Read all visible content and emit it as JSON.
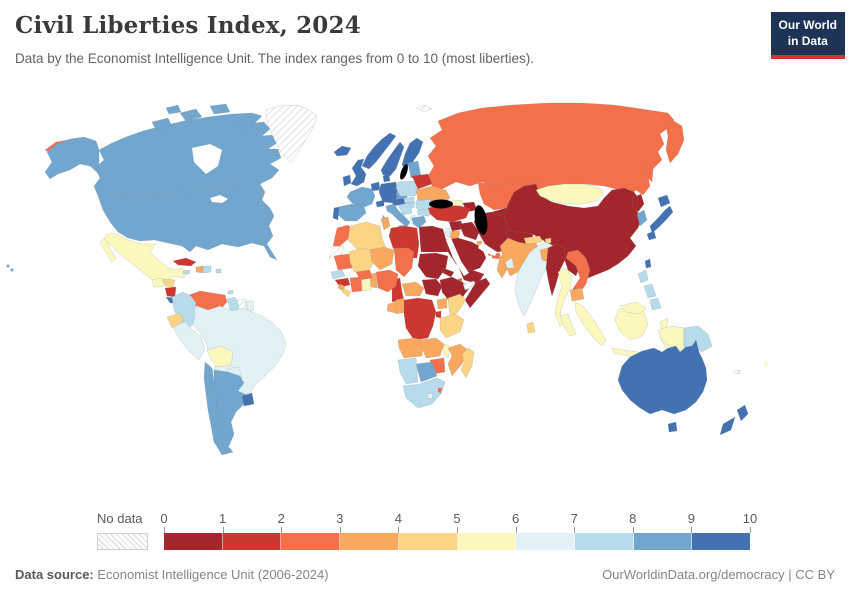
{
  "header": {
    "title": "Civil Liberties Index, 2024",
    "subtitle": "Data by the Economist Intelligence Unit. The index ranges from 0 to 10 (most liberties)."
  },
  "logo": {
    "line1": "Our World",
    "line2": "in Data",
    "bg_color": "#1d3456",
    "accent_color": "#d0342c"
  },
  "legend": {
    "no_data_label": "No data",
    "ticks": [
      "0",
      "1",
      "2",
      "3",
      "4",
      "5",
      "6",
      "7",
      "8",
      "9",
      "10"
    ],
    "bin_colors": [
      "#a2262c",
      "#cd3731",
      "#f3704b",
      "#f9a85f",
      "#fbd485",
      "#fcf8bd",
      "#e1f1f6",
      "#b6dbea",
      "#72a6ce",
      "#4371b2"
    ]
  },
  "footer": {
    "source_label": "Data source:",
    "source_text": " Economist Intelligence Unit (2006-2024)",
    "right_text": "OurWorldinData.org/democracy | CC BY"
  },
  "chart_data": {
    "type": "choropleth-world-map",
    "title": "Civil Liberties Index, 2024",
    "value_range": [
      0,
      10
    ],
    "legend_bins": [
      "0-1",
      "1-2",
      "2-3",
      "3-4",
      "4-5",
      "5-6",
      "6-7",
      "7-8",
      "8-9",
      "9-10"
    ],
    "note": "bin = index into legend bin_colors; null = no data",
    "countries": {
      "canada": {
        "name": "Canada",
        "bin": 8
      },
      "united-states": {
        "name": "United States",
        "bin": 8
      },
      "greenland": {
        "name": "Greenland",
        "bin": null
      },
      "mexico": {
        "name": "Mexico",
        "bin": 5
      },
      "guatemala": {
        "name": "Guatemala",
        "bin": 5
      },
      "honduras": {
        "name": "Honduras",
        "bin": 4
      },
      "nicaragua": {
        "name": "Nicaragua",
        "bin": 1
      },
      "costa-rica": {
        "name": "Costa Rica",
        "bin": 9
      },
      "panama": {
        "name": "Panama",
        "bin": 8
      },
      "cuba": {
        "name": "Cuba",
        "bin": 1
      },
      "haiti": {
        "name": "Haiti",
        "bin": 3
      },
      "dominican-republic": {
        "name": "Dominican Republic",
        "bin": 7
      },
      "jamaica": {
        "name": "Jamaica",
        "bin": 7
      },
      "puerto-rico": {
        "name": "Puerto Rico",
        "bin": 7
      },
      "trinidad": {
        "name": "Trinidad and Tobago",
        "bin": 7
      },
      "venezuela": {
        "name": "Venezuela",
        "bin": 2
      },
      "colombia": {
        "name": "Colombia",
        "bin": 7
      },
      "guyana": {
        "name": "Guyana",
        "bin": 7
      },
      "suriname": {
        "name": "Suriname",
        "bin": null
      },
      "french-guiana": {
        "name": "French Guiana",
        "bin": 6
      },
      "ecuador": {
        "name": "Ecuador",
        "bin": 4
      },
      "peru": {
        "name": "Peru",
        "bin": 6
      },
      "brazil": {
        "name": "Brazil",
        "bin": 6
      },
      "bolivia": {
        "name": "Bolivia",
        "bin": 5
      },
      "paraguay": {
        "name": "Paraguay",
        "bin": 6
      },
      "chile": {
        "name": "Chile",
        "bin": 8
      },
      "argentina": {
        "name": "Argentina",
        "bin": 8
      },
      "uruguay": {
        "name": "Uruguay",
        "bin": 9
      },
      "iceland": {
        "name": "Iceland",
        "bin": 9
      },
      "norway": {
        "name": "Norway",
        "bin": 9
      },
      "sweden": {
        "name": "Sweden",
        "bin": 9
      },
      "finland": {
        "name": "Finland",
        "bin": 9
      },
      "denmark": {
        "name": "Denmark",
        "bin": 9
      },
      "united-kingdom": {
        "name": "United Kingdom",
        "bin": 9
      },
      "ireland": {
        "name": "Ireland",
        "bin": 9
      },
      "netherlands": {
        "name": "Netherlands / Belgium",
        "bin": 9
      },
      "germany": {
        "name": "Germany",
        "bin": 9
      },
      "france": {
        "name": "France",
        "bin": 8
      },
      "spain": {
        "name": "Spain",
        "bin": 8
      },
      "portugal": {
        "name": "Portugal",
        "bin": 9
      },
      "switzerland": {
        "name": "Switzerland",
        "bin": 9
      },
      "austria": {
        "name": "Austria",
        "bin": 9
      },
      "italy": {
        "name": "Italy",
        "bin": 8
      },
      "czechia": {
        "name": "Czechia",
        "bin": 8
      },
      "slovakia": {
        "name": "Slovakia",
        "bin": 7
      },
      "poland": {
        "name": "Poland",
        "bin": 7
      },
      "baltics": {
        "name": "Baltic states",
        "bin": 8
      },
      "belarus": {
        "name": "Belarus",
        "bin": 1
      },
      "ukraine": {
        "name": "Ukraine",
        "bin": 3
      },
      "hungary": {
        "name": "Hungary",
        "bin": 7
      },
      "romania": {
        "name": "Romania",
        "bin": 7
      },
      "bulgaria": {
        "name": "Bulgaria",
        "bin": 7
      },
      "balkans": {
        "name": "Western Balkans",
        "bin": 7
      },
      "albania": {
        "name": "Albania",
        "bin": 6
      },
      "greece": {
        "name": "Greece",
        "bin": 8
      },
      "russia": {
        "name": "Russia",
        "bin": 2
      },
      "svalbard": {
        "name": "Svalbard",
        "bin": null
      },
      "georgia": {
        "name": "Georgia",
        "bin": 5
      },
      "armenia": {
        "name": "Armenia",
        "bin": 4
      },
      "azerbaijan": {
        "name": "Azerbaijan",
        "bin": 0
      },
      "turkey": {
        "name": "Turkey",
        "bin": 1
      },
      "syria": {
        "name": "Syria",
        "bin": 0
      },
      "iraq": {
        "name": "Iraq",
        "bin": 0
      },
      "israel": {
        "name": "Israel",
        "bin": 6
      },
      "jordan": {
        "name": "Jordan",
        "bin": 3
      },
      "saudi-arabia": {
        "name": "Saudi Arabia",
        "bin": 0
      },
      "kuwait": {
        "name": "Kuwait",
        "bin": 3
      },
      "qatar": {
        "name": "Qatar",
        "bin": 2
      },
      "uae": {
        "name": "United Arab Emirates",
        "bin": 2
      },
      "oman": {
        "name": "Oman",
        "bin": 3
      },
      "yemen": {
        "name": "Yemen",
        "bin": 0
      },
      "iran": {
        "name": "Iran",
        "bin": 0
      },
      "kazakhstan": {
        "name": "Kazakhstan",
        "bin": 2
      },
      "uzbekistan": {
        "name": "Uzbekistan",
        "bin": 0
      },
      "turkmenistan": {
        "name": "Turkmenistan",
        "bin": 0
      },
      "kyrgyzstan": {
        "name": "Kyrgyzstan",
        "bin": 1
      },
      "tajikistan": {
        "name": "Tajikistan",
        "bin": 0
      },
      "afghanistan": {
        "name": "Afghanistan",
        "bin": 0
      },
      "pakistan": {
        "name": "Pakistan",
        "bin": 3
      },
      "india": {
        "name": "India",
        "bin": 6
      },
      "nepal": {
        "name": "Nepal",
        "bin": 4
      },
      "bhutan": {
        "name": "Bhutan",
        "bin": 4
      },
      "bangladesh": {
        "name": "Bangladesh",
        "bin": 3
      },
      "sri-lanka": {
        "name": "Sri Lanka",
        "bin": 4
      },
      "myanmar": {
        "name": "Myanmar",
        "bin": 0
      },
      "thailand": {
        "name": "Thailand",
        "bin": 5
      },
      "laos": {
        "name": "Laos",
        "bin": 0
      },
      "vietnam": {
        "name": "Vietnam",
        "bin": 2
      },
      "cambodia": {
        "name": "Cambodia",
        "bin": 3
      },
      "malaysia": {
        "name": "Malaysia",
        "bin": 5
      },
      "indonesia": {
        "name": "Indonesia",
        "bin": 5
      },
      "philippines": {
        "name": "Philippines",
        "bin": 7
      },
      "taiwan": {
        "name": "Taiwan",
        "bin": 9
      },
      "china": {
        "name": "China",
        "bin": 0
      },
      "mongolia": {
        "name": "Mongolia",
        "bin": 5
      },
      "north-korea": {
        "name": "North Korea",
        "bin": 0
      },
      "south-korea": {
        "name": "South Korea",
        "bin": 8
      },
      "japan": {
        "name": "Japan",
        "bin": 9
      },
      "morocco": {
        "name": "Morocco",
        "bin": 2
      },
      "western-sahara": {
        "name": "Western Sahara",
        "bin": null
      },
      "algeria": {
        "name": "Algeria",
        "bin": 4
      },
      "tunisia": {
        "name": "Tunisia",
        "bin": 3
      },
      "libya": {
        "name": "Libya",
        "bin": 1
      },
      "egypt": {
        "name": "Egypt",
        "bin": 0
      },
      "mauritania": {
        "name": "Mauritania",
        "bin": 2
      },
      "mali": {
        "name": "Mali",
        "bin": 4
      },
      "niger": {
        "name": "Niger",
        "bin": 3
      },
      "chad": {
        "name": "Chad",
        "bin": 2
      },
      "sudan": {
        "name": "Sudan",
        "bin": 0
      },
      "eritrea": {
        "name": "Eritrea",
        "bin": 0
      },
      "ethiopia": {
        "name": "Ethiopia",
        "bin": 0
      },
      "djibouti": {
        "name": "Djibouti",
        "bin": 2
      },
      "somaliland": {
        "name": "Somaliland",
        "bin": null
      },
      "somalia": {
        "name": "Somalia",
        "bin": 0
      },
      "south-sudan": {
        "name": "South Sudan",
        "bin": 0
      },
      "senegal": {
        "name": "Senegal",
        "bin": 7
      },
      "guinea": {
        "name": "Guinea",
        "bin": 1
      },
      "sierra-leone": {
        "name": "Sierra Leone",
        "bin": 3
      },
      "liberia": {
        "name": "Liberia",
        "bin": 4
      },
      "cote-divoire": {
        "name": "Cote d'Ivoire",
        "bin": 2
      },
      "ghana": {
        "name": "Ghana",
        "bin": 5
      },
      "burkina-faso": {
        "name": "Burkina Faso",
        "bin": 2
      },
      "togo-benin": {
        "name": "Togo / Benin",
        "bin": 3
      },
      "nigeria": {
        "name": "Nigeria",
        "bin": 2
      },
      "cameroon": {
        "name": "Cameroon",
        "bin": 1
      },
      "central-african-republic": {
        "name": "Central African Republic",
        "bin": 3
      },
      "gabon": {
        "name": "Gabon",
        "bin": 3
      },
      "congo": {
        "name": "Congo",
        "bin": 3
      },
      "drc": {
        "name": "Democratic Republic of Congo",
        "bin": 1
      },
      "uganda": {
        "name": "Uganda",
        "bin": 3
      },
      "kenya": {
        "name": "Kenya",
        "bin": 4
      },
      "rwanda-burundi": {
        "name": "Rwanda / Burundi",
        "bin": 1
      },
      "tanzania": {
        "name": "Tanzania",
        "bin": 4
      },
      "angola": {
        "name": "Angola",
        "bin": 3
      },
      "zambia": {
        "name": "Zambia",
        "bin": 3
      },
      "malawi": {
        "name": "Malawi",
        "bin": 5
      },
      "mozambique": {
        "name": "Mozambique",
        "bin": 3
      },
      "zimbabwe": {
        "name": "Zimbabwe",
        "bin": 2
      },
      "botswana": {
        "name": "Botswana",
        "bin": 8
      },
      "namibia": {
        "name": "Namibia",
        "bin": 7
      },
      "south-africa": {
        "name": "South Africa",
        "bin": 7
      },
      "lesotho": {
        "name": "Lesotho",
        "bin": 6
      },
      "eswatini": {
        "name": "Eswatini",
        "bin": 2
      },
      "madagascar": {
        "name": "Madagascar",
        "bin": 4
      },
      "australia": {
        "name": "Australia",
        "bin": 9
      },
      "papua-new-guinea": {
        "name": "Papua New Guinea",
        "bin": 7
      },
      "new-zealand": {
        "name": "New Zealand",
        "bin": 9
      },
      "fiji": {
        "name": "Fiji",
        "bin": 5
      },
      "new-caledonia": {
        "name": "New Caledonia",
        "bin": null
      }
    }
  }
}
